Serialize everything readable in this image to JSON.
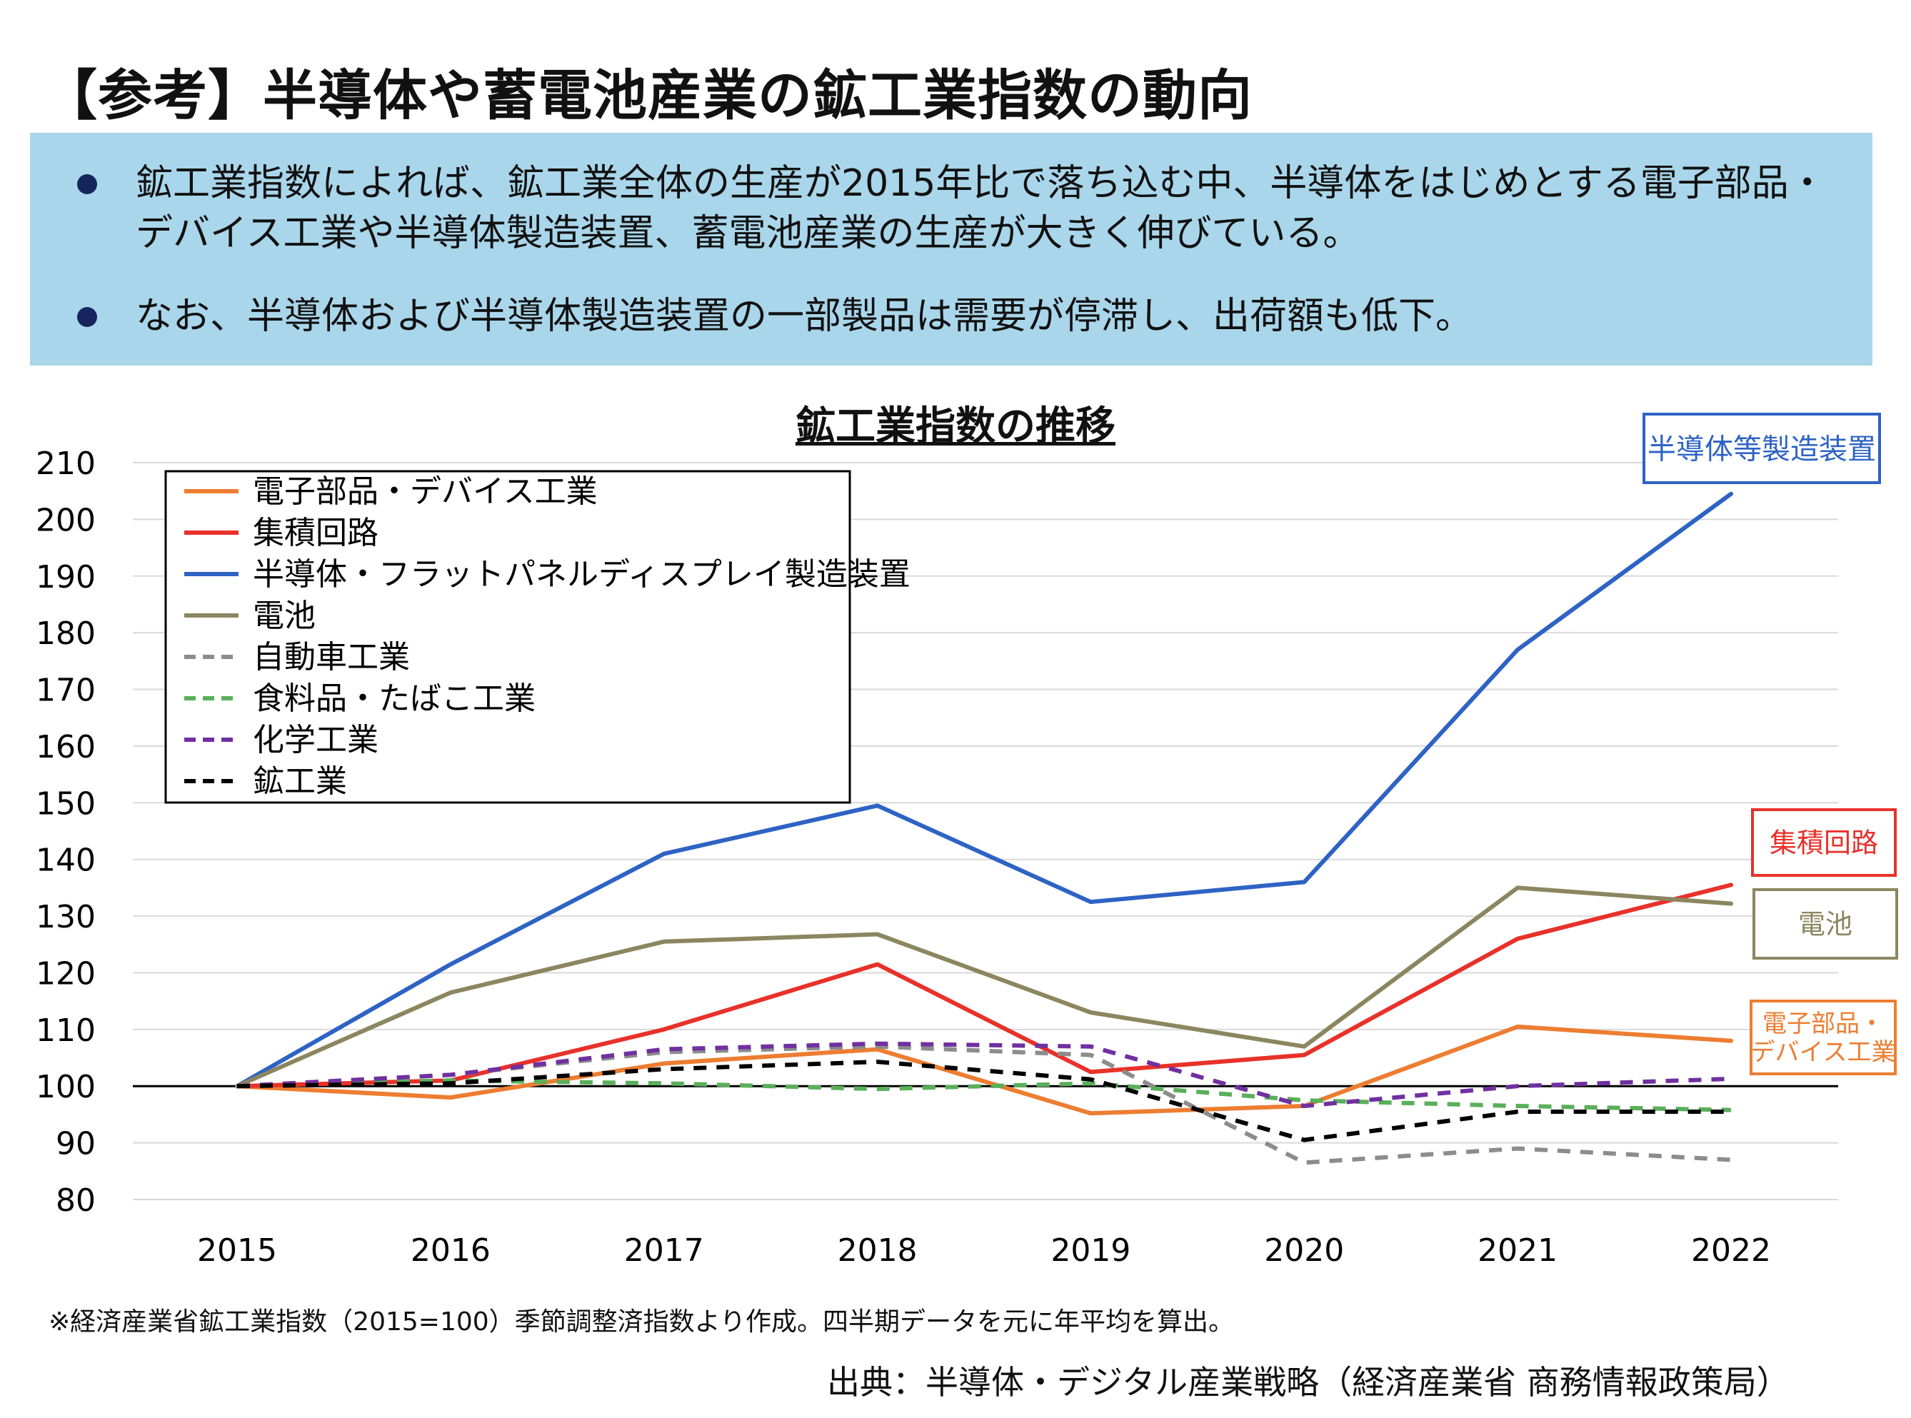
{
  "title": "【参考】半導体や蓄電池産業の鉱工業指数の動向",
  "bullets": [
    "鉱工業指数によれば、鉱工業全体の生産が2015年比で落ち込む中、半導体をはじめとする電子部品・デバイス工業や半導体製造装置、蓄電池産業の生産が大きく伸びている。",
    "なお、半導体および半導体製造装置の一部製品は需要が停滞し、出荷額も低下。"
  ],
  "chart_data": {
    "type": "line",
    "title": "鉱工業指数の推移",
    "x": [
      "2015",
      "2016",
      "2017",
      "2018",
      "2019",
      "2020",
      "2021",
      "2022"
    ],
    "ylim": [
      80,
      210
    ],
    "yticks": [
      80,
      90,
      100,
      110,
      120,
      130,
      140,
      150,
      160,
      170,
      180,
      190,
      200,
      210
    ],
    "grid": true,
    "legend_position": "top-left",
    "series": [
      {
        "name": "電子部品・デバイス工業",
        "color": "#ED7D31",
        "dash": false,
        "values": [
          100,
          98,
          104,
          106.5,
          95.2,
          96.5,
          110.5,
          108
        ]
      },
      {
        "name": "集積回路",
        "color": "#E8312A",
        "dash": false,
        "values": [
          100,
          101,
          110,
          121.5,
          102.5,
          105.5,
          126,
          135.5
        ]
      },
      {
        "name": "半導体・フラットパネルディスプレイ製造装置",
        "color": "#2E63C4",
        "dash": false,
        "values": [
          100,
          121.5,
          141,
          149.5,
          132.5,
          136,
          177,
          204.5
        ]
      },
      {
        "name": "電池",
        "color": "#8C8660",
        "dash": false,
        "values": [
          100,
          116.5,
          125.5,
          126.8,
          113,
          107,
          135,
          132.2
        ]
      },
      {
        "name": "自動車工業",
        "color": "#8C8C8C",
        "dash": true,
        "values": [
          100,
          102,
          106,
          107,
          105.5,
          86.5,
          89,
          87
        ]
      },
      {
        "name": "食料品・たばこ工業",
        "color": "#5AAF5A",
        "dash": true,
        "values": [
          100,
          101,
          100.5,
          99.5,
          100.5,
          97.5,
          96.5,
          95.8
        ]
      },
      {
        "name": "化学工業",
        "color": "#7030A0",
        "dash": true,
        "values": [
          100,
          102,
          106.5,
          107.5,
          107,
          96.5,
          100,
          101.3
        ]
      },
      {
        "name": "鉱工業",
        "color": "#000000",
        "dash": true,
        "values": [
          100,
          100.5,
          103,
          104.3,
          101.2,
          90.5,
          95.5,
          95.5
        ]
      }
    ],
    "annotations": [
      {
        "text": "半導体等製造装置",
        "color": "#2E63C4"
      },
      {
        "text": "集積回路",
        "color": "#E8312A"
      },
      {
        "text": "電池",
        "color": "#8C8660"
      },
      {
        "text": "電子部品・\nデバイス工業",
        "color": "#ED7D31"
      }
    ]
  },
  "footnote": "※経済産業省鉱工業指数（2015=100）季節調整済指数より作成。四半期データを元に年平均を算出。",
  "source": "出典：半導体・デジタル産業戦略（経済産業省 商務情報政策局）"
}
